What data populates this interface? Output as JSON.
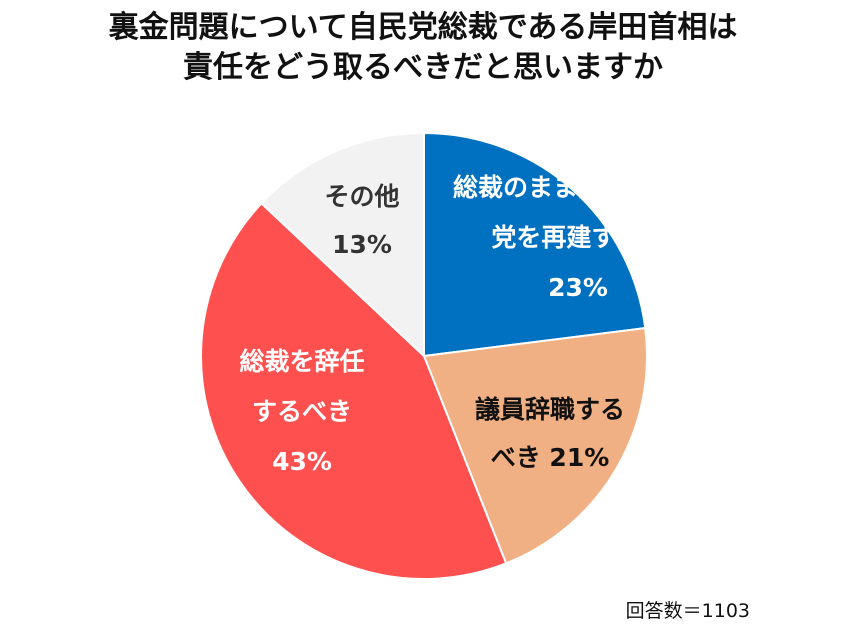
{
  "chart_data": {
    "type": "pie",
    "title": [
      "裏金問題について自民党総裁である岸田首相は",
      "責任をどう取るべきだと思いますか"
    ],
    "slices": [
      {
        "name": "総裁のまま辞職せずに党を再建すべき",
        "label_lines": [
          "総裁のまま辞職せずに",
          "党を再建すべき",
          "23%"
        ],
        "value": 23,
        "color": "#0070c0",
        "text_color": "#ffffff"
      },
      {
        "name": "議員辞職するべき",
        "label_lines": [
          "議員辞職する",
          "べき 21%"
        ],
        "value": 21,
        "color": "#f1b083",
        "text_color": "#111111"
      },
      {
        "name": "総裁を辞任するべき",
        "label_lines": [
          "総裁を辞任",
          "するべき",
          "43%"
        ],
        "value": 43,
        "color": "#ff5050",
        "text_color": "#ffffff"
      },
      {
        "name": "その他",
        "label_lines": [
          "その他",
          "13%"
        ],
        "value": 13,
        "color": "#f2f2f2",
        "text_color": "#333333"
      }
    ],
    "start": "12 o'clock",
    "direction": "clockwise",
    "note": "回答数＝1103"
  }
}
